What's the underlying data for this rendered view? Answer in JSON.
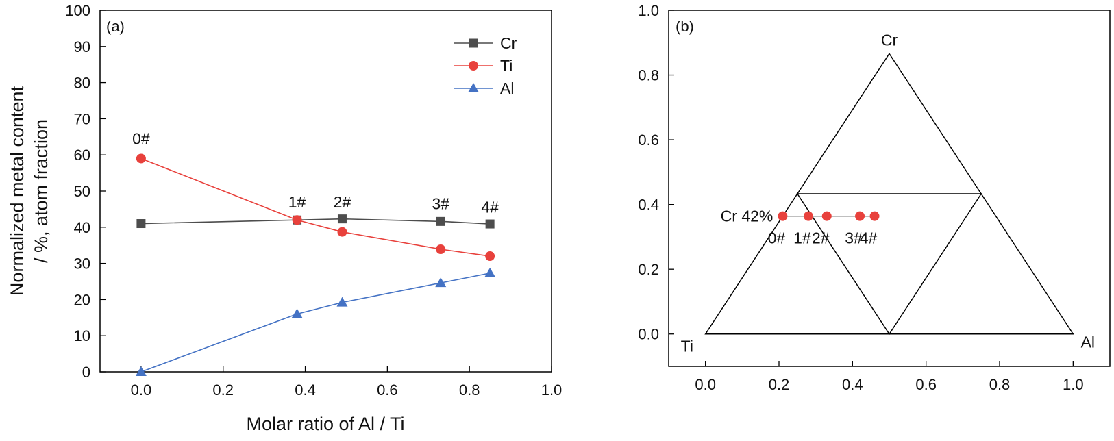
{
  "chart_data": [
    {
      "type": "line",
      "panel_label": "(a)",
      "xlabel": "Molar ratio of Al / Ti",
      "ylabel_lines": [
        "Normalized metal content",
        "/ %, atom fraction"
      ],
      "xlim": [
        -0.1,
        1.0
      ],
      "ylim": [
        0,
        100
      ],
      "xticks": [
        "0.0",
        "0.2",
        "0.4",
        "0.6",
        "0.8",
        "1.0"
      ],
      "yticks": [
        "0",
        "10",
        "20",
        "30",
        "40",
        "50",
        "60",
        "70",
        "80",
        "90",
        "100"
      ],
      "x": [
        0.0,
        0.38,
        0.49,
        0.73,
        0.85
      ],
      "series": [
        {
          "name": "Cr",
          "color": "#4d4d4d",
          "marker": "square",
          "values": [
            41.0,
            42.0,
            42.3,
            41.6,
            40.9
          ]
        },
        {
          "name": "Ti",
          "color": "#e8413c",
          "marker": "circle",
          "values": [
            59.0,
            42.0,
            38.7,
            33.9,
            32.0
          ]
        },
        {
          "name": "Al",
          "color": "#4472c4",
          "marker": "triangle",
          "values": [
            0.0,
            16.0,
            19.2,
            24.6,
            27.3
          ]
        }
      ],
      "legend_position": "top-right",
      "annotations": [
        {
          "text": "0#",
          "x": 0.0,
          "y": 63
        },
        {
          "text": "1#",
          "x": 0.38,
          "y": 45.5
        },
        {
          "text": "2#",
          "x": 0.49,
          "y": 45.5
        },
        {
          "text": "3#",
          "x": 0.73,
          "y": 45
        },
        {
          "text": "4#",
          "x": 0.85,
          "y": 44
        }
      ]
    },
    {
      "type": "scatter",
      "panel_label": "(b)",
      "xlim": [
        -0.1,
        1.1
      ],
      "ylim": [
        -0.1,
        1.0
      ],
      "xticks": [
        "0.0",
        "0.2",
        "0.4",
        "0.6",
        "0.8",
        "1.0"
      ],
      "yticks": [
        "0.0",
        "0.2",
        "0.4",
        "0.6",
        "0.8",
        "1.0"
      ],
      "vertex_labels": {
        "top": "Cr",
        "left": "Ti",
        "right": "Al"
      },
      "composition_label": "Cr 42%",
      "point_color": "#e8413c",
      "points": [
        {
          "label": "0#",
          "x": 0.21,
          "y": 0.364
        },
        {
          "label": "1#",
          "x": 0.28,
          "y": 0.364
        },
        {
          "label": "2#",
          "x": 0.33,
          "y": 0.364
        },
        {
          "label": "3#",
          "x": 0.42,
          "y": 0.364
        },
        {
          "label": "4#",
          "x": 0.46,
          "y": 0.364
        }
      ]
    }
  ]
}
